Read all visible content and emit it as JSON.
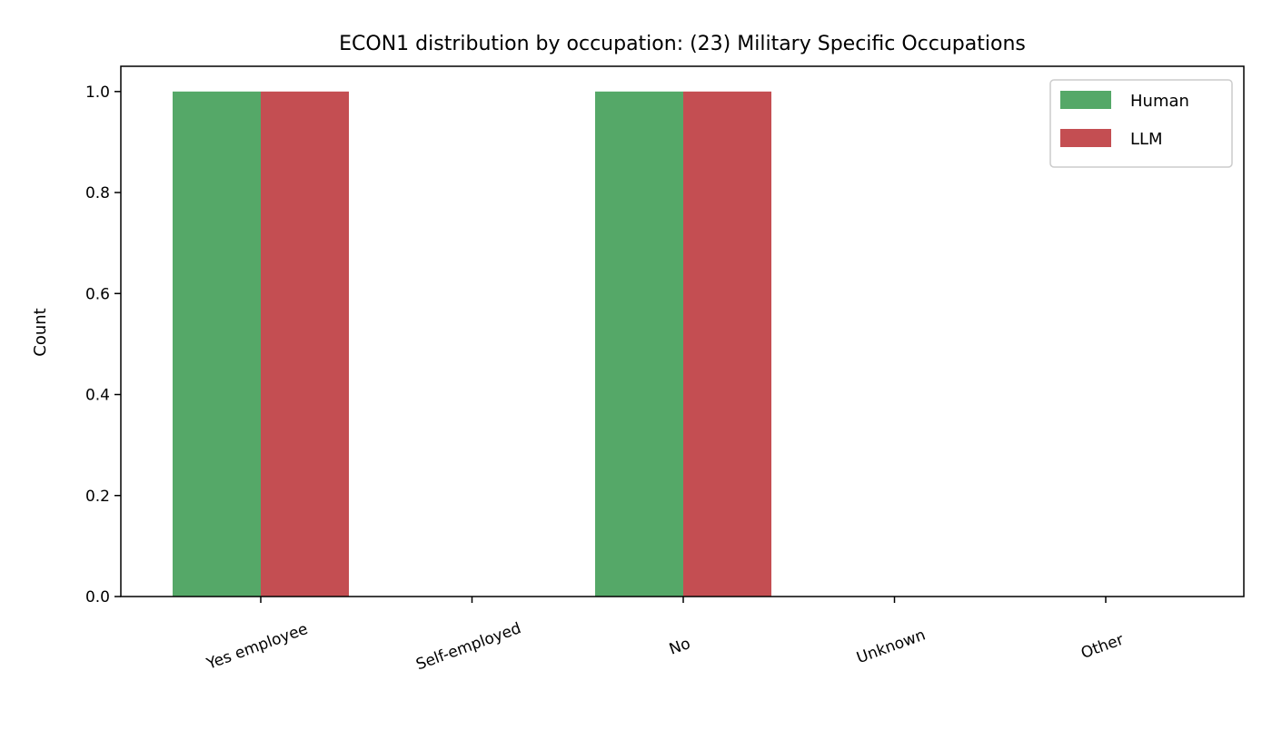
{
  "chart_data": {
    "type": "bar",
    "title": "ECON1 distribution by occupation: (23) Military Specific Occupations",
    "xlabel": "",
    "ylabel": "Count",
    "categories": [
      "Yes employee",
      "Self-employed",
      "No",
      "Unknown",
      "Other"
    ],
    "series": [
      {
        "name": "Human",
        "values": [
          1,
          0,
          1,
          0,
          0
        ],
        "color": "#55a868"
      },
      {
        "name": "LLM",
        "values": [
          1,
          0,
          1,
          0,
          0
        ],
        "color": "#c44e52"
      }
    ],
    "ylim": [
      0,
      1.05
    ],
    "yticks": [
      0.0,
      0.2,
      0.4,
      0.6,
      0.8,
      1.0
    ],
    "ytick_labels": [
      "0.0",
      "0.2",
      "0.4",
      "0.6",
      "0.8",
      "1.0"
    ],
    "xtick_rotation_deg": 20,
    "grid": false,
    "legend_position": "top-right"
  }
}
